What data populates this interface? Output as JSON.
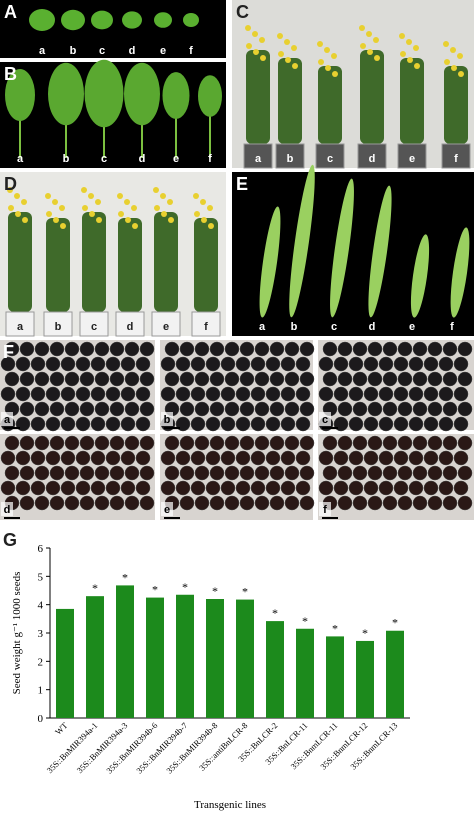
{
  "panels": {
    "A": {
      "letter": "A",
      "labels": [
        "a",
        "b",
        "c",
        "d",
        "e",
        "f"
      ]
    },
    "B": {
      "letter": "B",
      "labels": [
        "a",
        "b",
        "c",
        "d",
        "e",
        "f"
      ]
    },
    "C": {
      "letter": "C",
      "labels": [
        "a",
        "b",
        "c",
        "d",
        "e",
        "f"
      ]
    },
    "D": {
      "letter": "D",
      "labels": [
        "a",
        "b",
        "c",
        "d",
        "e",
        "f"
      ]
    },
    "E": {
      "letter": "E",
      "labels": [
        "a",
        "b",
        "c",
        "d",
        "e",
        "f"
      ]
    },
    "F": {
      "letter": "F",
      "labels": [
        "a",
        "b",
        "c",
        "d",
        "e",
        "f"
      ]
    },
    "G": {
      "letter": "G"
    }
  },
  "chart_data": {
    "type": "bar",
    "y_label": "Seed weight g⁻¹ 1000 seeds",
    "x_label": "Transgenic lines",
    "categories": [
      "WT",
      "35S::BnMIR394a-1",
      "35S::BnMIR394a-3",
      "35S::BnMIR394b-6",
      "35S::BnMIR394b-7",
      "35S::BnMIR394b-8",
      "35S::antiBnLCR-8",
      "35S::BnLCR-2",
      "35S::BnLCR-11",
      "35S::BnmLCR-11",
      "35S::BnmLCR-12",
      "35S::BnmLCR-13"
    ],
    "values": [
      3.85,
      4.3,
      4.68,
      4.25,
      4.35,
      4.2,
      4.18,
      3.42,
      3.15,
      2.88,
      2.72,
      3.08
    ],
    "annotations": [
      null,
      "*",
      "*",
      "*",
      "*",
      "*",
      "*",
      "*",
      "*",
      "*",
      "*",
      "*"
    ],
    "color": "#1c8a1c",
    "ylim": [
      0,
      6
    ],
    "yticks": [
      0,
      1,
      2,
      3,
      4,
      5,
      6
    ]
  }
}
